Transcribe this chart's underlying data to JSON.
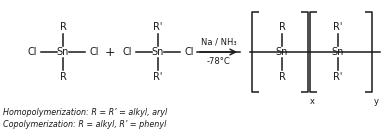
{
  "background_color": "#ffffff",
  "line_color": "#1a1a1a",
  "text_color": "#1a1a1a",
  "figsize": [
    3.92,
    1.4
  ],
  "dpi": 100,
  "bottom_text1": "Homopolymerization: R = R’ = alkyl, aryl",
  "bottom_text2": "Copolymerization: R = alkyl, R’ = phenyl",
  "arrow_label1": "Na / NH₃",
  "arrow_label2": "-78°C",
  "lw": 1.1
}
